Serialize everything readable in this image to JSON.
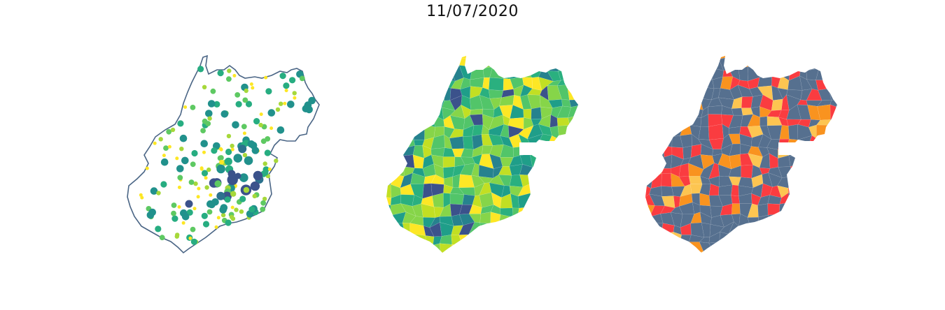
{
  "figure": {
    "date_title": "11/07/2020"
  },
  "maps": [
    {
      "id": "bubble-map",
      "style": "proportional-symbols",
      "outline_color": "#4a6585",
      "fill": "none",
      "palette": [
        "#fde725",
        "#a6d83a",
        "#5ec962",
        "#27ad81",
        "#21918c",
        "#2c728e",
        "#3b528b"
      ]
    },
    {
      "id": "choropleth-viridis",
      "style": "choropleth",
      "palette": [
        "#fde725",
        "#c2df23",
        "#86d549",
        "#52c569",
        "#2ab07f",
        "#1f9e89",
        "#26828e",
        "#3b528b"
      ]
    },
    {
      "id": "choropleth-categories",
      "style": "choropleth",
      "palette": [
        "#56708f",
        "#fa3c40",
        "#f9931f",
        "#fdc551"
      ]
    }
  ]
}
